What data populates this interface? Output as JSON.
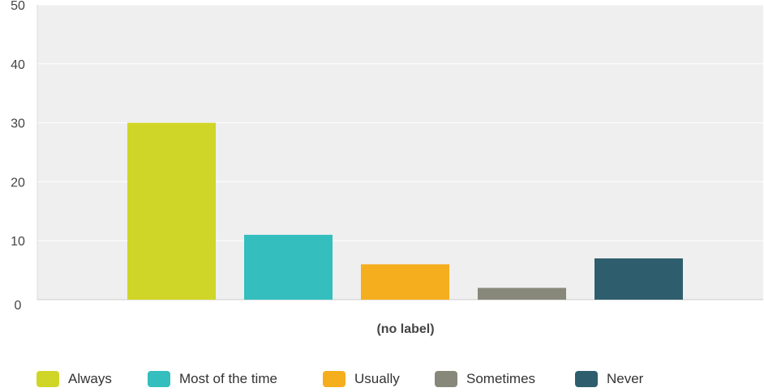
{
  "chart_data": {
    "type": "bar",
    "categories": [
      "(no label)"
    ],
    "xlabel": "(no label)",
    "ylim": [
      0,
      50
    ],
    "yticks": [
      0,
      10,
      20,
      30,
      40,
      50
    ],
    "grid": true,
    "legend_position": "bottom",
    "series": [
      {
        "name": "Always",
        "values": [
          30
        ],
        "color": "#CFD628"
      },
      {
        "name": "Most of the time",
        "values": [
          11
        ],
        "color": "#34BEBE"
      },
      {
        "name": "Usually",
        "values": [
          6
        ],
        "color": "#F5AE1E"
      },
      {
        "name": "Sometimes",
        "values": [
          2
        ],
        "color": "#87887A"
      },
      {
        "name": "Never",
        "values": [
          7
        ],
        "color": "#2E5E6D"
      }
    ]
  }
}
